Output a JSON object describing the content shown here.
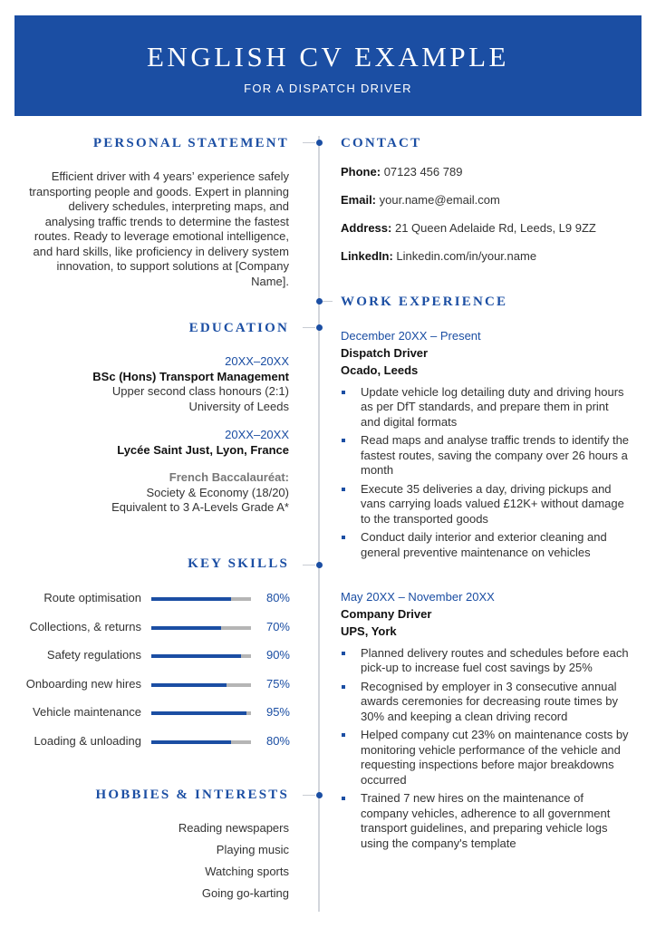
{
  "header": {
    "title": "ENGLISH CV EXAMPLE",
    "subtitle": "FOR A DISPATCH DRIVER"
  },
  "personal_statement": {
    "heading": "PERSONAL STATEMENT",
    "text": "Efficient driver with 4 years’ experience safely transporting people and goods. Expert in planning delivery schedules, interpreting maps, and analysing traffic trends to determine the fastest routes. Ready to leverage emotional intelligence, and hard skills, like proficiency in delivery system innovation, to support solutions at [Company Name]."
  },
  "education": {
    "heading": "EDUCATION",
    "items": [
      {
        "dates": "20XX–20XX",
        "degree": "BSc (Hons) Transport Management",
        "detail": "Upper second class honours (2:1)",
        "school": "University of Leeds"
      },
      {
        "dates": "20XX–20XX",
        "school": "Lycée Saint Just, Lyon, France",
        "qual": "French Baccalauréat:",
        "detail1": "Society & Economy (18/20)",
        "detail2": "Equivalent to 3 A-Levels Grade A*"
      }
    ]
  },
  "skills": {
    "heading": "KEY SKILLS",
    "items": [
      {
        "label": "Route optimisation",
        "value": 80,
        "pct": "80%"
      },
      {
        "label": "Collections, & returns",
        "value": 70,
        "pct": "70%"
      },
      {
        "label": "Safety regulations",
        "value": 90,
        "pct": "90%"
      },
      {
        "label": "Onboarding new hires",
        "value": 75,
        "pct": "75%"
      },
      {
        "label": "Vehicle maintenance",
        "value": 95,
        "pct": "95%"
      },
      {
        "label": "Loading & unloading",
        "value": 80,
        "pct": "80%"
      }
    ]
  },
  "hobbies": {
    "heading": "HOBBIES & INTERESTS",
    "items": [
      "Reading newspapers",
      "Playing music",
      "Watching sports",
      "Going go-karting"
    ]
  },
  "contact": {
    "heading": "CONTACT",
    "items": [
      {
        "label": "Phone:",
        "value": "07123 456 789"
      },
      {
        "label": "Email:",
        "value": "your.name@email.com"
      },
      {
        "label": "Address:",
        "value": "21 Queen Adelaide Rd, Leeds, L9 9ZZ"
      },
      {
        "label": "LinkedIn:",
        "value": "Linkedin.com/in/your.name"
      }
    ]
  },
  "work": {
    "heading": "WORK EXPERIENCE",
    "jobs": [
      {
        "dates": "December 20XX – Present",
        "title": "Dispatch Driver",
        "company": "Ocado, Leeds",
        "bullets": [
          "Update vehicle log detailing duty and driving hours as per DfT standards, and prepare them in print and digital formats",
          "Read maps and analyse traffic trends to identify the fastest routes, saving the company over 26 hours a month",
          "Execute 35 deliveries a day, driving pickups and vans carrying loads valued £12K+ without damage to the transported goods",
          "Conduct daily interior and exterior cleaning and general preventive maintenance on vehicles"
        ]
      },
      {
        "dates": "May 20XX – November 20XX",
        "title": "Company Driver",
        "company": "UPS, York",
        "bullets": [
          "Planned delivery routes and schedules before each pick-up to increase fuel cost savings by 25%",
          "Recognised by employer in 3 consecutive annual awards ceremonies for decreasing route times by 30% and keeping a clean driving record",
          "Helped company cut 23% on maintenance costs by monitoring vehicle performance of the vehicle and requesting inspections before major breakdowns occurred",
          "Trained 7 new hires on the maintenance of company vehicles, adherence to all government transport guidelines, and preparing vehicle logs using the company's template"
        ]
      }
    ]
  }
}
